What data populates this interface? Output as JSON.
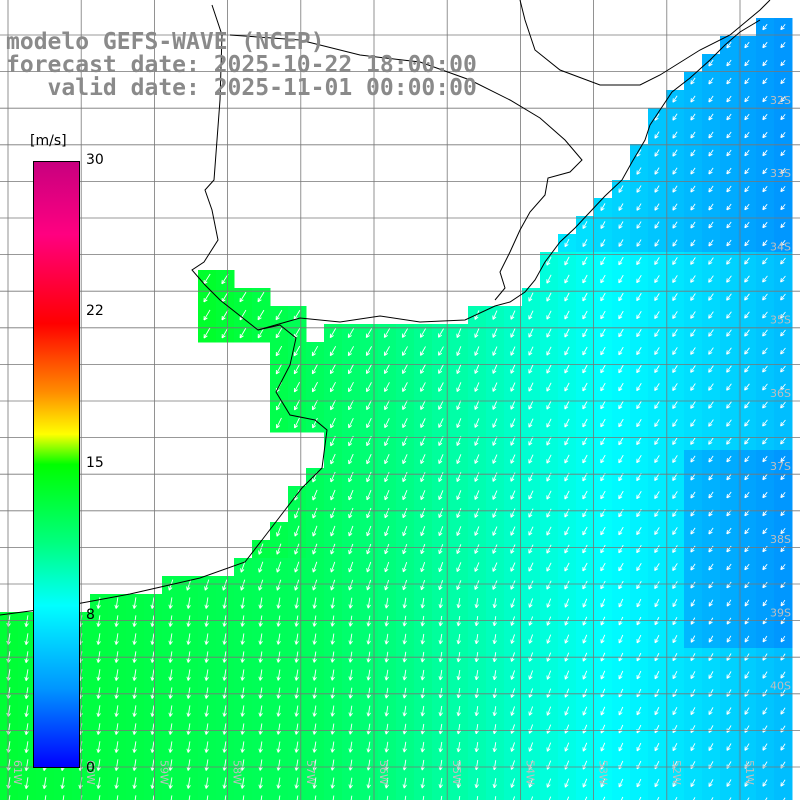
{
  "title": {
    "line1": "modelo GEFS-WAVE (NCEP)",
    "line2": "forecast date: 2025-10-22 18:00:00",
    "line3": "   valid date: 2025-11-01 00:00:00"
  },
  "colorbar": {
    "unit": "[m/s]",
    "ticks": [
      "30",
      "22",
      "15",
      "8",
      "0"
    ],
    "min": 0,
    "max": 30
  },
  "lat_labels": [
    "32S",
    "33S",
    "34S",
    "35S",
    "36S",
    "37S",
    "38S",
    "39S",
    "40S"
  ],
  "lon_labels": [
    "61W",
    "60W",
    "59W",
    "58W",
    "57W",
    "56W",
    "55W",
    "54W",
    "53W",
    "52W",
    "51W"
  ],
  "colors": {
    "land": "#ffffff",
    "coast": "#000000",
    "grid": "#777777",
    "arrow": "#ffffff",
    "title": "#8a8a8a"
  }
}
